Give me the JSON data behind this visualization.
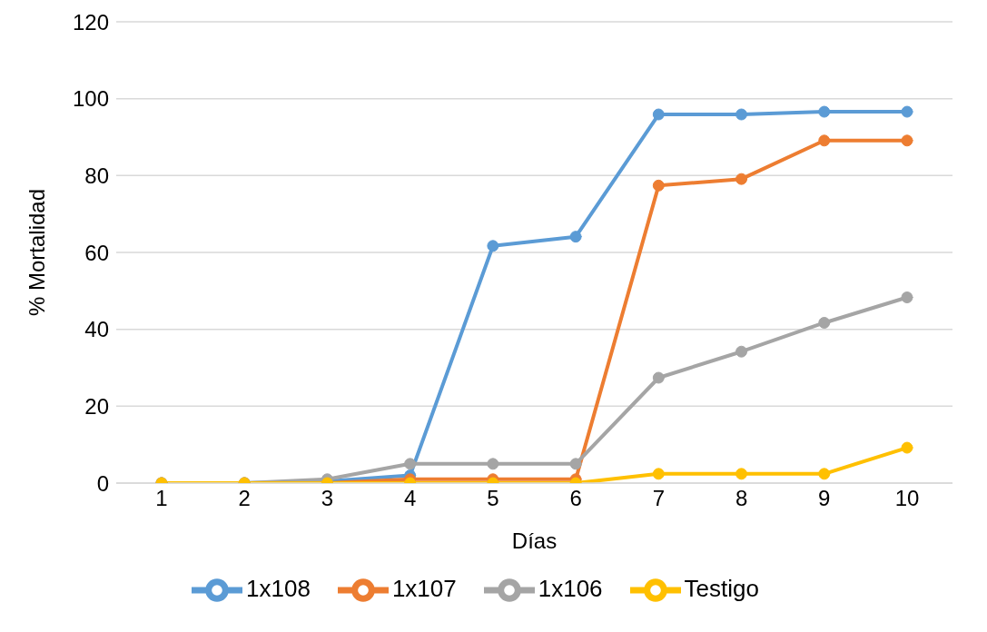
{
  "chart_data": {
    "type": "line",
    "xlabel": "Días",
    "ylabel": "% Mortalidad",
    "categories": [
      "1",
      "2",
      "3",
      "4",
      "5",
      "6",
      "7",
      "8",
      "9",
      "10"
    ],
    "series": [
      {
        "name": "1x108",
        "color": "#5b9bd5",
        "values": [
          0,
          0,
          0.5,
          2,
          61.7,
          64.1,
          95.9,
          95.9,
          96.6,
          96.6
        ]
      },
      {
        "name": "1x107",
        "color": "#ed7d31",
        "values": [
          0,
          0,
          0,
          1,
          1,
          1,
          77.4,
          79.1,
          89.1,
          89.1
        ]
      },
      {
        "name": "1x106",
        "color": "#a5a5a5",
        "values": [
          0,
          0,
          1,
          5,
          5,
          5,
          27.4,
          34.2,
          41.7,
          48.3
        ]
      },
      {
        "name": "Testigo",
        "color": "#ffc000",
        "values": [
          0,
          0,
          0,
          0,
          0,
          0,
          2.4,
          2.4,
          2.4,
          9.2
        ]
      }
    ],
    "ylim": [
      0,
      120
    ],
    "yticks": [
      0,
      20,
      40,
      60,
      80,
      100,
      120
    ],
    "grid": "y",
    "legend": "bottom",
    "marker": "circle",
    "line_style": "solid"
  }
}
